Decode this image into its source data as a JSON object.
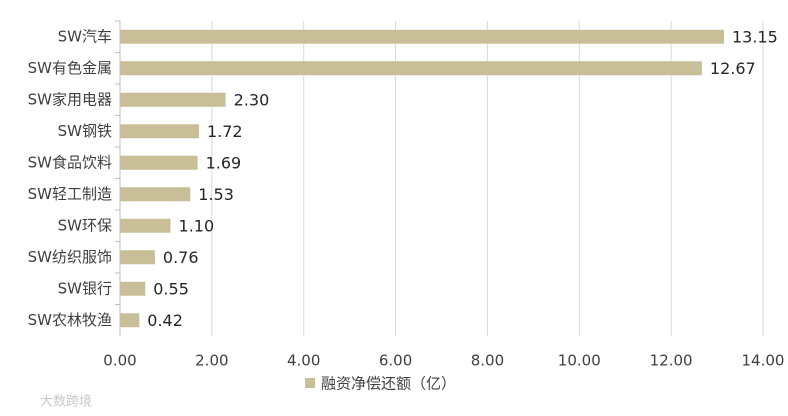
{
  "chart_data": {
    "type": "bar",
    "orientation": "horizontal",
    "categories": [
      "SW汽车",
      "SW有色金属",
      "SW家用电器",
      "SW钢铁",
      "SW食品饮料",
      "SW轻工制造",
      "SW环保",
      "SW纺织服饰",
      "SW银行",
      "SW农林牧渔"
    ],
    "series": [
      {
        "name": "融资净偿还额（亿）",
        "color": "#c8bf98",
        "values": [
          13.15,
          12.67,
          2.3,
          1.72,
          1.69,
          1.53,
          1.1,
          0.76,
          0.55,
          0.42
        ],
        "value_labels": [
          "13.15",
          "12.67",
          "2.30",
          "1.72",
          "1.69",
          "1.53",
          "1.10",
          "0.76",
          "0.55",
          "0.42"
        ]
      }
    ],
    "xlim": [
      0,
      14
    ],
    "xticks": [
      {
        "value": 0,
        "label": "0.00"
      },
      {
        "value": 2,
        "label": "2.00"
      },
      {
        "value": 4,
        "label": "4.00"
      },
      {
        "value": 6,
        "label": "6.00"
      },
      {
        "value": 8,
        "label": "8.00"
      },
      {
        "value": 10,
        "label": "10.00"
      },
      {
        "value": 12,
        "label": "12.00"
      },
      {
        "value": 14,
        "label": "14.00"
      }
    ],
    "grid": true,
    "legend": "bottom",
    "watermark": "大数跨境"
  }
}
